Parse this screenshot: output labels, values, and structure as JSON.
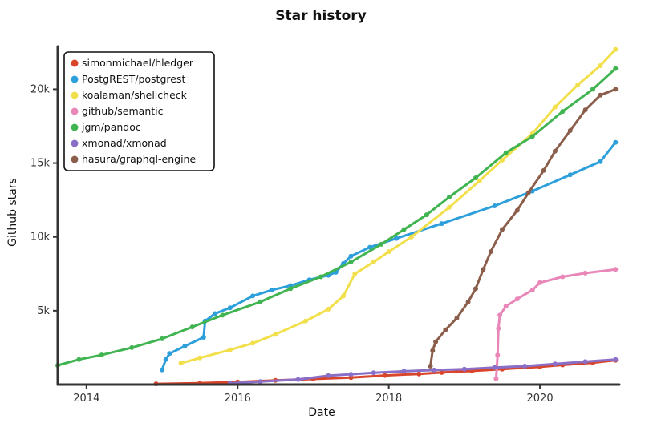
{
  "chart_data": {
    "type": "line",
    "title": "Star history",
    "xlabel": "Date",
    "ylabel": "Github stars",
    "x_ticks": [
      {
        "value": 2014,
        "label": "2014"
      },
      {
        "value": 2016,
        "label": "2016"
      },
      {
        "value": 2018,
        "label": "2018"
      },
      {
        "value": 2020,
        "label": "2020"
      }
    ],
    "y_ticks": [
      {
        "value": 5000,
        "label": "5k"
      },
      {
        "value": 10000,
        "label": "10k"
      },
      {
        "value": 15000,
        "label": "15k"
      },
      {
        "value": 20000,
        "label": "20k"
      }
    ],
    "xlim": [
      2013.62,
      2021.05
    ],
    "ylim": [
      0,
      22900
    ],
    "legend_position": "top-left",
    "series": [
      {
        "name": "simonmichael/hledger",
        "color": "#d9452b",
        "points": [
          [
            2014.92,
            50
          ],
          [
            2015.5,
            100
          ],
          [
            2016.0,
            180
          ],
          [
            2016.5,
            280
          ],
          [
            2017.0,
            380
          ],
          [
            2017.5,
            480
          ],
          [
            2017.95,
            620
          ],
          [
            2018.4,
            720
          ],
          [
            2018.7,
            820
          ],
          [
            2019.1,
            920
          ],
          [
            2019.5,
            1050
          ],
          [
            2020.0,
            1200
          ],
          [
            2020.3,
            1330
          ],
          [
            2020.7,
            1480
          ],
          [
            2021.0,
            1650
          ]
        ]
      },
      {
        "name": "PostgREST/postgrest",
        "color": "#2d9fdb",
        "points": [
          [
            2015.0,
            1000
          ],
          [
            2015.05,
            1700
          ],
          [
            2015.1,
            2100
          ],
          [
            2015.3,
            2600
          ],
          [
            2015.55,
            3200
          ],
          [
            2015.57,
            4300
          ],
          [
            2015.7,
            4800
          ],
          [
            2015.9,
            5200
          ],
          [
            2016.2,
            6000
          ],
          [
            2016.45,
            6400
          ],
          [
            2016.7,
            6700
          ],
          [
            2016.95,
            7100
          ],
          [
            2017.2,
            7400
          ],
          [
            2017.3,
            7600
          ],
          [
            2017.4,
            8200
          ],
          [
            2017.5,
            8700
          ],
          [
            2017.75,
            9300
          ],
          [
            2018.1,
            9900
          ],
          [
            2018.7,
            10900
          ],
          [
            2019.4,
            12100
          ],
          [
            2019.9,
            13100
          ],
          [
            2020.4,
            14200
          ],
          [
            2020.8,
            15100
          ],
          [
            2021.0,
            16400
          ]
        ]
      },
      {
        "name": "koalaman/shellcheck",
        "color": "#f2df4c",
        "points": [
          [
            2015.25,
            1450
          ],
          [
            2015.5,
            1800
          ],
          [
            2015.9,
            2350
          ],
          [
            2016.2,
            2800
          ],
          [
            2016.5,
            3400
          ],
          [
            2016.9,
            4300
          ],
          [
            2017.2,
            5100
          ],
          [
            2017.4,
            6000
          ],
          [
            2017.55,
            7500
          ],
          [
            2017.8,
            8300
          ],
          [
            2018.0,
            9000
          ],
          [
            2018.3,
            10000
          ],
          [
            2018.8,
            12000
          ],
          [
            2019.2,
            13800
          ],
          [
            2019.5,
            15200
          ],
          [
            2019.9,
            17000
          ],
          [
            2020.2,
            18800
          ],
          [
            2020.5,
            20300
          ],
          [
            2020.8,
            21600
          ],
          [
            2021.0,
            22700
          ]
        ]
      },
      {
        "name": "github/semantic",
        "color": "#e887b8",
        "points": [
          [
            2019.42,
            400
          ],
          [
            2019.44,
            2000
          ],
          [
            2019.45,
            3800
          ],
          [
            2019.47,
            4700
          ],
          [
            2019.55,
            5300
          ],
          [
            2019.7,
            5800
          ],
          [
            2019.9,
            6400
          ],
          [
            2020.0,
            6900
          ],
          [
            2020.3,
            7300
          ],
          [
            2020.6,
            7550
          ],
          [
            2021.0,
            7800
          ]
        ]
      },
      {
        "name": "jgm/pandoc",
        "color": "#40b450",
        "points": [
          [
            2013.62,
            1300
          ],
          [
            2013.9,
            1700
          ],
          [
            2014.2,
            2000
          ],
          [
            2014.6,
            2500
          ],
          [
            2015.0,
            3100
          ],
          [
            2015.4,
            3900
          ],
          [
            2015.8,
            4700
          ],
          [
            2016.3,
            5600
          ],
          [
            2016.7,
            6500
          ],
          [
            2017.1,
            7300
          ],
          [
            2017.5,
            8300
          ],
          [
            2017.9,
            9500
          ],
          [
            2018.2,
            10500
          ],
          [
            2018.5,
            11500
          ],
          [
            2018.8,
            12700
          ],
          [
            2019.15,
            14000
          ],
          [
            2019.55,
            15700
          ],
          [
            2019.9,
            16800
          ],
          [
            2020.3,
            18500
          ],
          [
            2020.7,
            20000
          ],
          [
            2021.0,
            21400
          ]
        ]
      },
      {
        "name": "xmonad/xmonad",
        "color": "#8a6fc8",
        "points": [
          [
            2015.9,
            80
          ],
          [
            2016.3,
            200
          ],
          [
            2016.8,
            350
          ],
          [
            2017.2,
            600
          ],
          [
            2017.5,
            700
          ],
          [
            2017.8,
            800
          ],
          [
            2018.2,
            900
          ],
          [
            2018.6,
            980
          ],
          [
            2019.0,
            1050
          ],
          [
            2019.4,
            1150
          ],
          [
            2019.8,
            1250
          ],
          [
            2020.2,
            1400
          ],
          [
            2020.6,
            1550
          ],
          [
            2021.0,
            1700
          ]
        ]
      },
      {
        "name": "hasura/graphql-engine",
        "color": "#8b5e4b",
        "points": [
          [
            2018.55,
            1250
          ],
          [
            2018.58,
            2300
          ],
          [
            2018.62,
            2900
          ],
          [
            2018.75,
            3700
          ],
          [
            2018.9,
            4500
          ],
          [
            2019.05,
            5600
          ],
          [
            2019.15,
            6500
          ],
          [
            2019.25,
            7800
          ],
          [
            2019.35,
            9000
          ],
          [
            2019.5,
            10500
          ],
          [
            2019.7,
            11800
          ],
          [
            2019.85,
            13000
          ],
          [
            2020.05,
            14500
          ],
          [
            2020.2,
            15800
          ],
          [
            2020.4,
            17200
          ],
          [
            2020.6,
            18600
          ],
          [
            2020.8,
            19600
          ],
          [
            2021.0,
            20000
          ]
        ]
      }
    ]
  }
}
